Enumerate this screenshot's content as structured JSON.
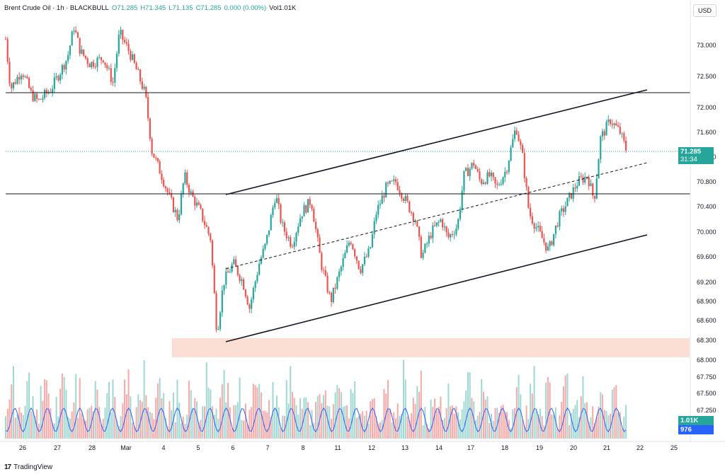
{
  "legend": {
    "symbol": "Brent Crude Oil · 1h · BLACKBULL",
    "open": "O71.285",
    "high": "H71.345",
    "low": "L71.135",
    "close": "C71.285",
    "change": "0.000 (0.00%)",
    "volume": "Vol1.01K"
  },
  "currency_button": "USD",
  "last_price": {
    "value": "71.285",
    "countdown": "31:34",
    "color": "#26a69a"
  },
  "volume_tags": {
    "volume": "1.01K",
    "volume_ma": "976",
    "volume_color": "#26a69a",
    "ma_color": "#2962ff"
  },
  "brand": "TradingView",
  "colors": {
    "up": "#26a69a",
    "down": "#ef5350",
    "support_zone": "#fbd9cc",
    "volume_ma": "#2962ff"
  },
  "chart_data": {
    "type": "candlestick",
    "title": "Brent Crude Oil · 1h · BLACKBULL",
    "y_ticks": [
      "73.000",
      "72.500",
      "72.000",
      "71.600",
      "71.200",
      "70.800",
      "70.400",
      "70.000",
      "69.600",
      "69.200",
      "68.900",
      "68.600",
      "68.300",
      "68.000",
      "67.750",
      "67.500",
      "67.250"
    ],
    "x_ticks": [
      "26",
      "27",
      "28",
      "Mar",
      "4",
      "5",
      "6",
      "7",
      "8",
      "11",
      "12",
      "13",
      "14",
      "17",
      "18",
      "19",
      "20",
      "21",
      "22",
      "25"
    ],
    "ylim": [
      67.0,
      73.4
    ],
    "close_path": [
      {
        "x": 0,
        "y": 73.1
      },
      {
        "x": 0.3,
        "y": 72.3
      },
      {
        "x": 1.0,
        "y": 72.6
      },
      {
        "x": 1.6,
        "y": 72.2
      },
      {
        "x": 2.0,
        "y": 72.1
      },
      {
        "x": 2.8,
        "y": 72.3
      },
      {
        "x": 3.2,
        "y": 72.5
      },
      {
        "x": 3.8,
        "y": 72.8
      },
      {
        "x": 4.2,
        "y": 73.3
      },
      {
        "x": 4.6,
        "y": 72.9
      },
      {
        "x": 5.2,
        "y": 72.7
      },
      {
        "x": 6.0,
        "y": 72.8
      },
      {
        "x": 6.6,
        "y": 72.4
      },
      {
        "x": 7.0,
        "y": 73.2
      },
      {
        "x": 7.6,
        "y": 72.9
      },
      {
        "x": 8.2,
        "y": 72.5
      },
      {
        "x": 8.6,
        "y": 72.2
      },
      {
        "x": 9.0,
        "y": 71.3
      },
      {
        "x": 9.6,
        "y": 70.9
      },
      {
        "x": 10.0,
        "y": 70.6
      },
      {
        "x": 10.6,
        "y": 70.2
      },
      {
        "x": 11.0,
        "y": 70.9
      },
      {
        "x": 11.4,
        "y": 70.6
      },
      {
        "x": 12.0,
        "y": 70.3
      },
      {
        "x": 12.6,
        "y": 69.9
      },
      {
        "x": 13.0,
        "y": 68.4
      },
      {
        "x": 13.4,
        "y": 69.2
      },
      {
        "x": 14.0,
        "y": 69.5
      },
      {
        "x": 14.6,
        "y": 69.2
      },
      {
        "x": 15.0,
        "y": 68.8
      },
      {
        "x": 15.6,
        "y": 69.5
      },
      {
        "x": 16.0,
        "y": 69.8
      },
      {
        "x": 16.6,
        "y": 70.6
      },
      {
        "x": 17.0,
        "y": 70.1
      },
      {
        "x": 17.6,
        "y": 69.8
      },
      {
        "x": 18.2,
        "y": 70.3
      },
      {
        "x": 18.8,
        "y": 70.5
      },
      {
        "x": 19.4,
        "y": 69.5
      },
      {
        "x": 20.0,
        "y": 68.9
      },
      {
        "x": 20.6,
        "y": 69.4
      },
      {
        "x": 21.2,
        "y": 69.9
      },
      {
        "x": 21.8,
        "y": 69.4
      },
      {
        "x": 22.4,
        "y": 69.7
      },
      {
        "x": 22.8,
        "y": 70.3
      },
      {
        "x": 23.4,
        "y": 70.7
      },
      {
        "x": 24.0,
        "y": 70.8
      },
      {
        "x": 24.6,
        "y": 70.5
      },
      {
        "x": 25.2,
        "y": 70.2
      },
      {
        "x": 25.6,
        "y": 69.6
      },
      {
        "x": 26.2,
        "y": 70.0
      },
      {
        "x": 26.8,
        "y": 70.2
      },
      {
        "x": 27.2,
        "y": 69.9
      },
      {
        "x": 27.8,
        "y": 70.1
      },
      {
        "x": 28.2,
        "y": 70.9
      },
      {
        "x": 28.8,
        "y": 71.1
      },
      {
        "x": 29.2,
        "y": 70.8
      },
      {
        "x": 29.8,
        "y": 70.9
      },
      {
        "x": 30.2,
        "y": 70.7
      },
      {
        "x": 30.8,
        "y": 71.0
      },
      {
        "x": 31.4,
        "y": 71.7
      },
      {
        "x": 31.8,
        "y": 71.2
      },
      {
        "x": 32.2,
        "y": 70.3
      },
      {
        "x": 32.8,
        "y": 70.0
      },
      {
        "x": 33.4,
        "y": 69.7
      },
      {
        "x": 34.0,
        "y": 70.2
      },
      {
        "x": 34.6,
        "y": 70.5
      },
      {
        "x": 35.2,
        "y": 70.8
      },
      {
        "x": 35.8,
        "y": 70.9
      },
      {
        "x": 36.2,
        "y": 70.5
      },
      {
        "x": 36.6,
        "y": 71.5
      },
      {
        "x": 37.2,
        "y": 71.8
      },
      {
        "x": 37.8,
        "y": 71.6
      },
      {
        "x": 38.2,
        "y": 71.3
      }
    ],
    "volume_max": 1.8
  }
}
